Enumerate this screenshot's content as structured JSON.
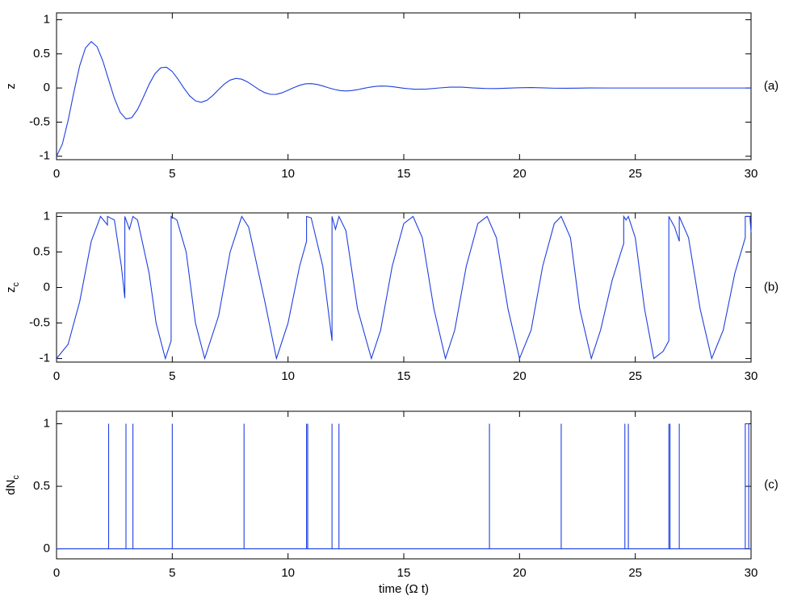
{
  "chart_data": [
    {
      "type": "line",
      "ylabel": "z",
      "panel_label": "(a)",
      "color": "#1f3fe0",
      "xlim": [
        0,
        30
      ],
      "xticks": [
        0,
        5,
        10,
        15,
        20,
        25,
        30
      ],
      "ylim": [
        -1.05,
        1.1
      ],
      "yticks": [
        -1,
        -0.5,
        0,
        0.5,
        1
      ],
      "x": [
        0,
        0.25,
        0.5,
        0.75,
        1,
        1.25,
        1.5,
        1.75,
        2,
        2.25,
        2.5,
        2.75,
        3,
        3.25,
        3.5,
        3.75,
        4,
        4.25,
        4.5,
        4.75,
        5,
        5.25,
        5.5,
        5.75,
        6,
        6.25,
        6.5,
        6.75,
        7,
        7.25,
        7.5,
        7.75,
        8,
        8.25,
        8.5,
        8.75,
        9,
        9.25,
        9.5,
        9.75,
        10,
        10.25,
        10.5,
        10.75,
        11,
        11.25,
        11.5,
        11.75,
        12,
        12.25,
        12.5,
        12.75,
        13,
        13.25,
        13.5,
        13.75,
        14,
        14.25,
        14.5,
        14.75,
        15,
        15.5,
        16,
        16.5,
        17,
        17.5,
        18,
        18.5,
        19,
        19.5,
        20,
        20.5,
        21,
        21.5,
        22,
        22.5,
        23,
        24,
        26,
        28,
        30
      ],
      "values": [
        -1,
        -0.824,
        -0.477,
        -0.059,
        0.324,
        0.586,
        0.68,
        0.605,
        0.397,
        0.12,
        -0.152,
        -0.357,
        -0.453,
        -0.434,
        -0.314,
        -0.136,
        0.054,
        0.208,
        0.296,
        0.304,
        0.241,
        0.128,
        -0.001,
        -0.115,
        -0.188,
        -0.21,
        -0.179,
        -0.11,
        -0.024,
        0.058,
        0.116,
        0.141,
        0.129,
        0.089,
        0.033,
        -0.024,
        -0.069,
        -0.093,
        -0.092,
        -0.069,
        -0.033,
        0.006,
        0.039,
        0.061,
        0.064,
        0.052,
        0.03,
        0.003,
        -0.021,
        -0.038,
        -0.044,
        -0.038,
        -0.025,
        -0.007,
        0.01,
        0.023,
        0.029,
        0.027,
        0.02,
        0.008,
        -0.004,
        -0.019,
        -0.015,
        0,
        0.012,
        0.012,
        0.001,
        -0.007,
        -0.008,
        -0.002,
        0.004,
        0.006,
        0.002,
        -0.003,
        -0.004,
        -0.002,
        0.001,
        0,
        0,
        0,
        0
      ]
    },
    {
      "type": "line",
      "ylabel": "z",
      "ylabel_sub": "c",
      "panel_label": "(b)",
      "color": "#1f3fe0",
      "xlim": [
        0,
        30
      ],
      "xticks": [
        0,
        5,
        10,
        15,
        20,
        25,
        30
      ],
      "ylim": [
        -1.05,
        1.05
      ],
      "yticks": [
        -1,
        -0.5,
        0,
        0.5,
        1
      ],
      "x": [
        0,
        0.5,
        1,
        1.5,
        1.9,
        2.2,
        2.2,
        2.5,
        2.8,
        2.95,
        2.95,
        3.15,
        3.3,
        3.5,
        4,
        4.3,
        4.7,
        4.95,
        4.95,
        5.2,
        5.6,
        6,
        6.4,
        7,
        7.5,
        8,
        8.3,
        9,
        9.5,
        10,
        10.5,
        10.8,
        10.8,
        11,
        11.5,
        11.9,
        11.9,
        12.05,
        12.2,
        12.5,
        13,
        13.6,
        14,
        14.5,
        15,
        15.4,
        15.8,
        16.3,
        16.8,
        17.2,
        17.7,
        18.2,
        18.6,
        19,
        19.5,
        20,
        20.5,
        21,
        21.5,
        21.8,
        22.2,
        22.6,
        23.1,
        23.5,
        24,
        24.5,
        24.5,
        24.6,
        24.7,
        25,
        25.4,
        25.8,
        26.2,
        26.45,
        26.45,
        26.7,
        26.9,
        26.9,
        27.3,
        27.8,
        28.3,
        28.8,
        29.3,
        29.75,
        29.75,
        29.95,
        30
      ],
      "values": [
        -1,
        -0.8,
        -0.2,
        0.65,
        1,
        0.88,
        1,
        0.95,
        0.3,
        -0.15,
        1,
        0.82,
        1,
        0.95,
        0.2,
        -0.5,
        -1,
        -0.75,
        1,
        0.95,
        0.5,
        -0.5,
        -1,
        -0.4,
        0.5,
        1,
        0.85,
        -0.2,
        -1,
        -0.5,
        0.3,
        0.65,
        1,
        0.98,
        0.3,
        -0.75,
        1,
        0.82,
        1,
        0.8,
        -0.3,
        -1,
        -0.6,
        0.3,
        0.9,
        1,
        0.7,
        -0.3,
        -1,
        -0.6,
        0.3,
        0.9,
        1,
        0.7,
        -0.3,
        -1,
        -0.6,
        0.3,
        0.9,
        1,
        0.7,
        -0.3,
        -1,
        -0.6,
        0.1,
        0.62,
        1,
        0.95,
        1,
        0.7,
        -0.3,
        -1,
        -0.9,
        -0.75,
        1,
        0.85,
        0.65,
        1,
        0.7,
        -0.3,
        -1,
        -0.6,
        0.2,
        0.7,
        1,
        1,
        0.78
      ]
    },
    {
      "type": "line",
      "ylabel": "dN",
      "ylabel_sub": "c",
      "panel_label": "(c)",
      "xlabel": "time (Ω t)",
      "color": "#1f3fe0",
      "xlim": [
        0,
        30
      ],
      "xticks": [
        0,
        5,
        10,
        15,
        20,
        25,
        30
      ],
      "ylim": [
        -0.08,
        1.1
      ],
      "yticks": [
        0,
        0.5,
        1
      ],
      "x": [
        0,
        2.25,
        2.25,
        2.25,
        3,
        3,
        3,
        3.3,
        3.3,
        3.3,
        5,
        5,
        5,
        8.1,
        8.1,
        8.1,
        10.8,
        10.8,
        10.8,
        10.85,
        10.85,
        10.85,
        11.9,
        11.9,
        11.9,
        12.2,
        12.2,
        12.2,
        18.7,
        18.7,
        18.7,
        21.8,
        21.8,
        21.8,
        24.55,
        24.55,
        24.55,
        24.7,
        24.7,
        24.7,
        26.45,
        26.45,
        26.45,
        26.5,
        26.5,
        26.5,
        26.9,
        26.9,
        26.9,
        29.75,
        29.75,
        29.9,
        29.9,
        30
      ],
      "values": [
        0,
        0,
        1,
        0,
        0,
        1,
        0,
        0,
        1,
        0,
        0,
        1,
        0,
        0,
        1,
        0,
        0,
        1,
        0,
        0,
        1,
        0,
        0,
        1,
        0,
        0,
        1,
        0,
        0,
        1,
        0,
        0,
        1,
        0,
        0,
        1,
        0,
        0,
        1,
        0,
        0,
        1,
        0,
        0,
        1,
        0,
        0,
        1,
        0,
        0,
        1,
        1,
        0,
        0
      ]
    }
  ]
}
